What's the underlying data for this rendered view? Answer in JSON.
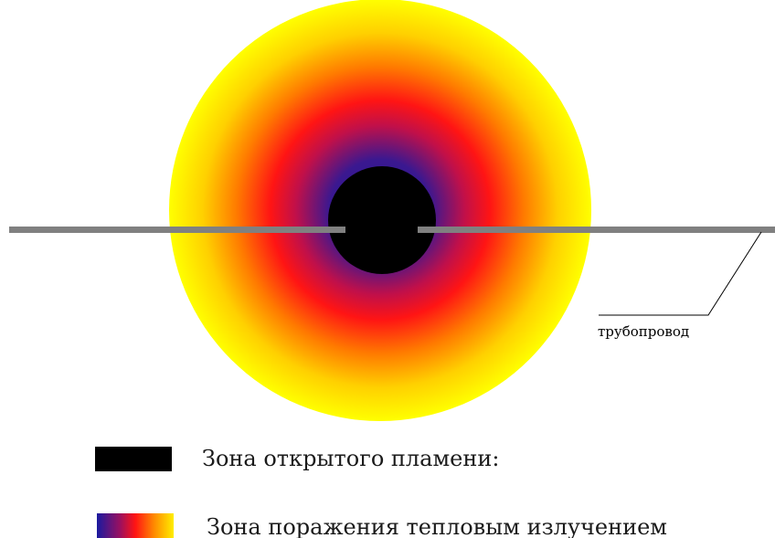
{
  "diagram": {
    "pipe_label": "трубопровод",
    "colors": {
      "flame_core": "#000000",
      "pipe": "#808080",
      "gradient_inner": "#2a1a8f",
      "gradient_mid": "#ff1a1a",
      "gradient_outer": "#ffff00",
      "background": "#ffffff"
    }
  },
  "legend": {
    "items": [
      {
        "label": "Зона открытого пламени:",
        "swatch": "black"
      },
      {
        "label": "Зона поражения тепловым излучением",
        "swatch": "gradient"
      }
    ]
  }
}
